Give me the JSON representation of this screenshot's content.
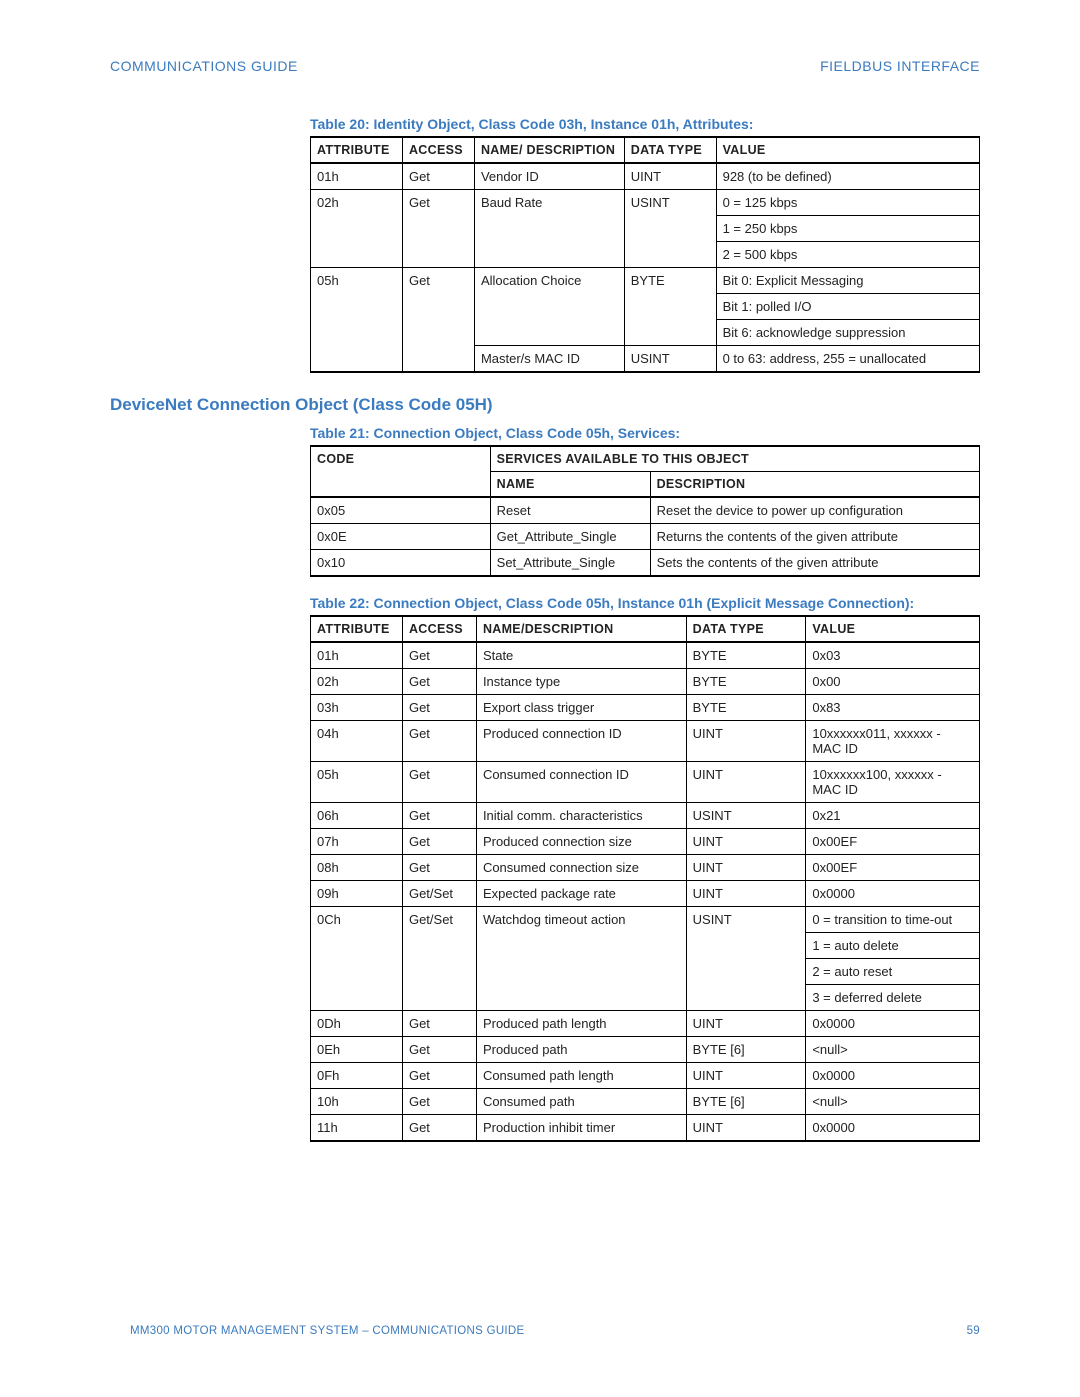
{
  "header": {
    "left": "COMMUNICATIONS GUIDE",
    "right": "FIELDBUS INTERFACE"
  },
  "footer": {
    "left": "MM300 MOTOR MANAGEMENT SYSTEM – COMMUNICATIONS GUIDE",
    "page": "59"
  },
  "section_heading": "DeviceNet Connection Object (Class Code 05H)",
  "table20": {
    "caption": "Table 20: Identity Object, Class Code 03h, Instance 01h, Attributes:",
    "cols": [
      "ATTRIBUTE",
      "ACCESS",
      "NAME/ DESCRIPTION",
      "DATA TYPE",
      "VALUE"
    ],
    "col_widths": [
      "92px",
      "72px",
      "150px",
      "92px",
      "264px"
    ],
    "rows": [
      {
        "attr": "01h",
        "access": "Get",
        "name": "Vendor ID",
        "dtype": "UINT",
        "value": "928 (to be defined)"
      },
      {
        "attr": "02h",
        "access": "Get",
        "name": "Baud Rate",
        "dtype": "USINT",
        "value": "0 = 125 kbps",
        "cont": true
      },
      {
        "attr": "",
        "access": "",
        "name": "",
        "dtype": "",
        "value": "1 = 250 kbps",
        "cont": true,
        "mid": true
      },
      {
        "attr": "",
        "access": "",
        "name": "",
        "dtype": "",
        "value": "2 = 500 kbps"
      },
      {
        "attr": "05h",
        "access": "Get",
        "name": "Allocation Choice",
        "dtype": "BYTE",
        "value": "Bit 0: Explicit Messaging",
        "cont": true
      },
      {
        "attr": "",
        "access": "",
        "name": "",
        "dtype": "",
        "value": "Bit 1: polled I/O",
        "cont": true,
        "mid": true
      },
      {
        "attr": "",
        "access": "",
        "name": "",
        "dtype": "",
        "value": "Bit 6: acknowledge suppression",
        "mid4": true
      },
      {
        "attr": "",
        "access": "",
        "name": "Master/s MAC ID",
        "dtype": "USINT",
        "value": "0 to 63: address, 255 = unallocated",
        "last": true
      }
    ]
  },
  "table21": {
    "caption": "Table 21: Connection Object, Class Code 05h, Services:",
    "head": {
      "code": "CODE",
      "services": "SERVICES AVAILABLE TO THIS OBJECT",
      "name": "NAME",
      "desc": "DESCRIPTION"
    },
    "col_widths": [
      "180px",
      "160px",
      "330px"
    ],
    "rows": [
      {
        "code": "0x05",
        "name": "Reset",
        "desc": "Reset the device to power up configuration"
      },
      {
        "code": "0x0E",
        "name": "Get_Attribute_Single",
        "desc": "Returns the contents of the given attribute"
      },
      {
        "code": "0x10",
        "name": "Set_Attribute_Single",
        "desc": "Sets the contents of the given attribute"
      }
    ]
  },
  "table22": {
    "caption": "Table 22: Connection Object, Class Code 05h, Instance 01h (Explicit Message Connection):",
    "cols": [
      "ATTRIBUTE",
      "ACCESS",
      "NAME/DESCRIPTION",
      "DATA TYPE",
      "VALUE"
    ],
    "col_widths": [
      "92px",
      "74px",
      "210px",
      "120px",
      "174px"
    ],
    "rows": [
      {
        "attr": "01h",
        "access": "Get",
        "name": "State",
        "dtype": "BYTE",
        "value": "0x03"
      },
      {
        "attr": "02h",
        "access": "Get",
        "name": "Instance type",
        "dtype": "BYTE",
        "value": "0x00"
      },
      {
        "attr": "03h",
        "access": "Get",
        "name": "Export class trigger",
        "dtype": "BYTE",
        "value": "0x83"
      },
      {
        "attr": "04h",
        "access": "Get",
        "name": "Produced connection ID",
        "dtype": "UINT",
        "value": "10xxxxxx011, xxxxxx - MAC ID"
      },
      {
        "attr": "05h",
        "access": "Get",
        "name": "Consumed connection ID",
        "dtype": "UINT",
        "value": "10xxxxxx100, xxxxxx - MAC ID"
      },
      {
        "attr": "06h",
        "access": "Get",
        "name": "Initial comm. characteristics",
        "dtype": "USINT",
        "value": "0x21"
      },
      {
        "attr": "07h",
        "access": "Get",
        "name": "Produced connection size",
        "dtype": "UINT",
        "value": "0x00EF"
      },
      {
        "attr": "08h",
        "access": "Get",
        "name": "Consumed connection size",
        "dtype": "UINT",
        "value": "0x00EF"
      },
      {
        "attr": "09h",
        "access": "Get/Set",
        "name": "Expected package rate",
        "dtype": "UINT",
        "value": "0x0000"
      },
      {
        "attr": "0Ch",
        "access": "Get/Set",
        "name": "Watchdog timeout action",
        "dtype": "USINT",
        "value": "0 = transition to time-out",
        "cont": true
      },
      {
        "attr": "",
        "access": "",
        "name": "",
        "dtype": "",
        "value": "1 = auto delete",
        "cont": true,
        "mid": true
      },
      {
        "attr": "",
        "access": "",
        "name": "",
        "dtype": "",
        "value": "2 = auto reset",
        "cont": true,
        "mid": true
      },
      {
        "attr": "",
        "access": "",
        "name": "",
        "dtype": "",
        "value": "3 = deferred delete",
        "mid": true,
        "bottom_close": true
      },
      {
        "attr": "0Dh",
        "access": "Get",
        "name": "Produced path length",
        "dtype": "UINT",
        "value": "0x0000"
      },
      {
        "attr": "0Eh",
        "access": "Get",
        "name": "Produced path",
        "dtype": "BYTE [6]",
        "value": "<null>"
      },
      {
        "attr": "0Fh",
        "access": "Get",
        "name": "Consumed path length",
        "dtype": "UINT",
        "value": "0x0000"
      },
      {
        "attr": "10h",
        "access": "Get",
        "name": "Consumed path",
        "dtype": "BYTE [6]",
        "value": "<null>"
      },
      {
        "attr": "11h",
        "access": "Get",
        "name": "Production inhibit timer",
        "dtype": "UINT",
        "value": "0x0000",
        "last": true
      }
    ]
  },
  "colors": {
    "brand": "#3b7bbf",
    "text": "#222222",
    "border": "#000000",
    "background": "#ffffff"
  }
}
